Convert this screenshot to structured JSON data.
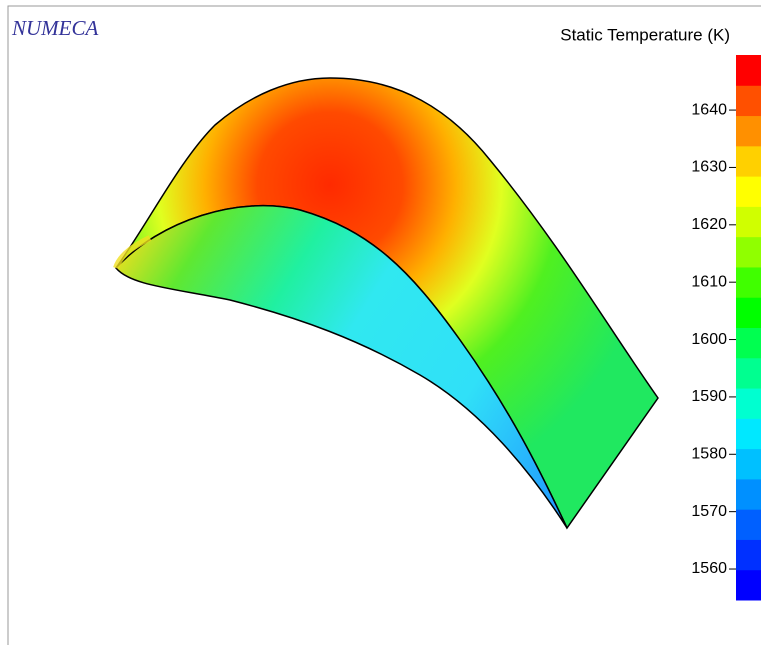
{
  "brand": "NUMECA",
  "colorbar": {
    "title": "Static Temperature (K)",
    "range": [
      1554.6,
      1649.6
    ],
    "ticks": [
      1560,
      1570,
      1580,
      1590,
      1600,
      1610,
      1620,
      1630,
      1640
    ],
    "colors": [
      "#0000ff",
      "#0030ff",
      "#0060ff",
      "#0090ff",
      "#00c0ff",
      "#00e8ff",
      "#00ffd0",
      "#00ff90",
      "#00ff50",
      "#00ff00",
      "#40ff00",
      "#90ff00",
      "#d0ff00",
      "#ffff00",
      "#ffd000",
      "#ff9000",
      "#ff5000",
      "#ff0000"
    ]
  }
}
